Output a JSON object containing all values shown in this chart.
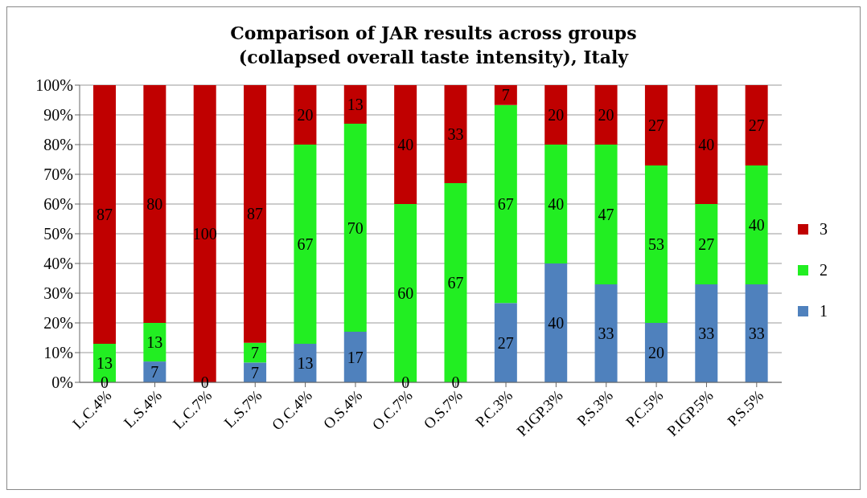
{
  "chart_data": {
    "type": "bar",
    "title": "Comparison of JAR results across groups (collapsed overall taste intensity), Italy",
    "categories": [
      "L.C.4%",
      "L.S.4%",
      "L.C.7%",
      "L.S.7%",
      "O.C.4%",
      "O.S.4%",
      "O.C.7%",
      "O.S.7%",
      "P.C.3%",
      "P.IGP.3%",
      "P.S.3%",
      "P.C.5%",
      "P.IGP.5%",
      "P.S.5%"
    ],
    "stacked": true,
    "series": [
      {
        "name": "1",
        "color": "#4f81bd",
        "values": [
          0,
          7,
          0,
          6.67,
          13,
          17,
          0,
          0,
          26.67,
          40,
          33,
          20,
          33,
          33
        ],
        "value_labels": [
          "0",
          "7",
          "0",
          "7",
          "13",
          "17",
          "0",
          "0",
          "27",
          "40",
          "33",
          "20",
          "33",
          "33"
        ]
      },
      {
        "name": "2",
        "color": "#22ee22",
        "values": [
          13,
          13,
          0,
          6.67,
          67,
          70,
          60,
          67,
          66.66,
          40,
          47,
          53,
          27,
          40
        ],
        "value_labels": [
          "13",
          "13",
          null,
          "7",
          "67",
          "70",
          "60",
          "67",
          "67",
          "40",
          "47",
          "53",
          "27",
          "40"
        ]
      },
      {
        "name": "3",
        "color": "#c00000",
        "values": [
          87,
          80,
          100,
          86.66,
          20,
          13,
          40,
          33,
          6.67,
          20,
          20,
          27,
          40,
          27
        ],
        "value_labels": [
          "87",
          "80",
          "100",
          "87",
          "20",
          "13",
          "40",
          "33",
          "7",
          "20",
          "20",
          "27",
          "40",
          "27"
        ]
      }
    ],
    "ylim": [
      0,
      100
    ],
    "yticks": [
      {
        "value": 0,
        "label": "0%"
      },
      {
        "value": 10,
        "label": "10%"
      },
      {
        "value": 20,
        "label": "20%"
      },
      {
        "value": 30,
        "label": "30%"
      },
      {
        "value": 40,
        "label": "40%"
      },
      {
        "value": 50,
        "label": "50%"
      },
      {
        "value": 60,
        "label": "60%"
      },
      {
        "value": 70,
        "label": "70%"
      },
      {
        "value": 80,
        "label": "80%"
      },
      {
        "value": 90,
        "label": "90%"
      },
      {
        "value": 100,
        "label": "100%"
      }
    ],
    "grid": "y",
    "legend": "right"
  }
}
